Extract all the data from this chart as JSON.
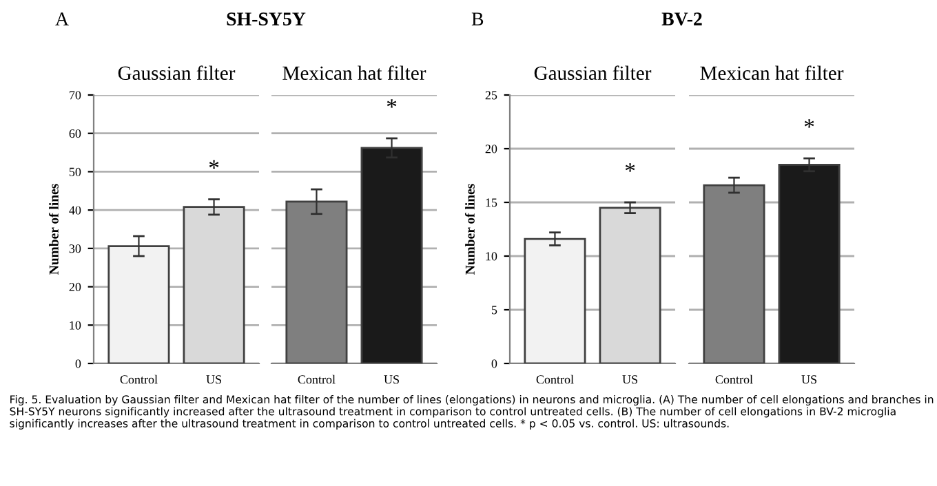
{
  "chart_data": [
    {
      "type": "bar",
      "title": "Gaussian filter",
      "ylabel": "Number of lines",
      "categories": [
        "Control",
        "US"
      ],
      "colors": [
        "#f2f2f2",
        "#d9d9d9"
      ],
      "values": [
        30.6,
        40.8
      ],
      "errors": [
        2.6,
        2.0
      ],
      "ylim": [
        0,
        70
      ],
      "yticks": [
        0,
        10,
        20,
        30,
        40,
        50,
        60,
        70
      ],
      "grid": "y",
      "annotations": [
        "A",
        "SH-SY5Y",
        "*",
        "Fig. 5. Evaluation by Gaussian filter and Mexican hat filter of the number of lines (elongations) in neurons and microglia. (A) The number of cell elongations and branches in SH-SY5Y neurons significantly increased after the ultrasound treatment in comparison to control untreated cells. (B) The number of cell elongations in BV-2 microglia significantly increases after the ultrasound treatment in comparison to control untreated cells. * p < 0.05 vs. control. US: ultrasounds."
      ]
    },
    {
      "type": "bar",
      "title": "Mexican hat filter",
      "categories": [
        "Control",
        "US"
      ],
      "colors": [
        "#7f7f7f",
        "#1a1a1a"
      ],
      "values": [
        42.2,
        56.2
      ],
      "errors": [
        3.2,
        2.5
      ],
      "ylim": [
        0,
        70
      ],
      "yticks": [
        0,
        10,
        20,
        30,
        40,
        50,
        60,
        70
      ],
      "grid": "y",
      "tick_labels": "x",
      "annotations": [
        "*"
      ]
    },
    {
      "type": "bar",
      "title": "Gaussian filter",
      "ylabel": "Number of lines",
      "categories": [
        "Control",
        "US"
      ],
      "colors": [
        "#f2f2f2",
        "#d9d9d9"
      ],
      "values": [
        11.6,
        14.5
      ],
      "errors": [
        0.6,
        0.5
      ],
      "ylim": [
        0,
        25
      ],
      "yticks": [
        0,
        5,
        10,
        15,
        20,
        25
      ],
      "grid": "y",
      "annotations": [
        "B",
        "BV-2",
        "*"
      ]
    },
    {
      "type": "bar",
      "title": "Mexican hat filter",
      "categories": [
        "Control",
        "US"
      ],
      "colors": [
        "#7f7f7f",
        "#1a1a1a"
      ],
      "values": [
        16.6,
        18.5
      ],
      "errors": [
        0.7,
        0.6
      ],
      "ylim": [
        0,
        25
      ],
      "yticks": [
        0,
        5,
        10,
        15,
        20,
        25
      ],
      "grid": "y",
      "tick_labels": "x",
      "annotations": [
        "*"
      ]
    }
  ]
}
